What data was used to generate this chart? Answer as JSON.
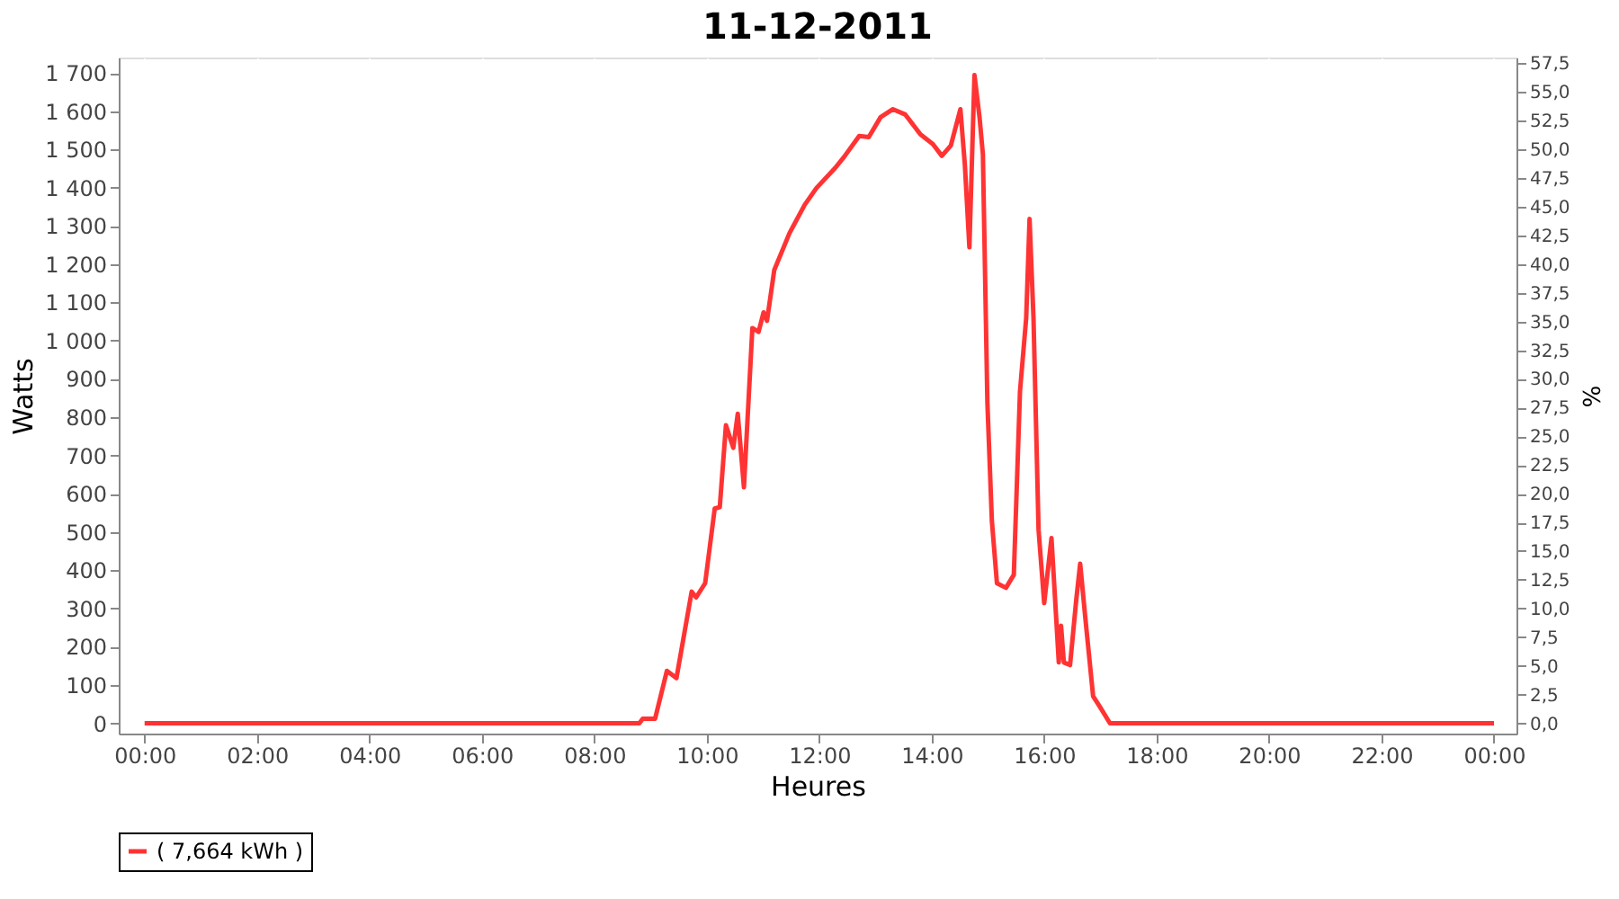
{
  "chart_data": {
    "type": "line",
    "title": "11-12-2011",
    "xlabel": "Heures",
    "ylabel": "Watts",
    "y2label": "%",
    "xlim": [
      -0.46,
      24.4
    ],
    "ylim": [
      -27,
      1740
    ],
    "y2lim": [
      -0.9,
      58.0
    ],
    "xticks": [
      {
        "value": 0,
        "label": "00:00"
      },
      {
        "value": 2,
        "label": "02:00"
      },
      {
        "value": 4,
        "label": "04:00"
      },
      {
        "value": 6,
        "label": "06:00"
      },
      {
        "value": 8,
        "label": "08:00"
      },
      {
        "value": 10,
        "label": "10:00"
      },
      {
        "value": 12,
        "label": "12:00"
      },
      {
        "value": 14,
        "label": "14:00"
      },
      {
        "value": 16,
        "label": "16:00"
      },
      {
        "value": 18,
        "label": "18:00"
      },
      {
        "value": 20,
        "label": "20:00"
      },
      {
        "value": 22,
        "label": "22:00"
      },
      {
        "value": 24,
        "label": "00:00"
      }
    ],
    "yticks": [
      0,
      100,
      200,
      300,
      400,
      500,
      600,
      700,
      800,
      900,
      {
        "value": 1000,
        "label": "1 000"
      },
      {
        "value": 1100,
        "label": "1 100"
      },
      {
        "value": 1200,
        "label": "1 200"
      },
      {
        "value": 1300,
        "label": "1 300"
      },
      {
        "value": 1400,
        "label": "1 400"
      },
      {
        "value": 1500,
        "label": "1 500"
      },
      {
        "value": 1600,
        "label": "1 600"
      },
      {
        "value": 1700,
        "label": "1 700"
      }
    ],
    "y2ticks": [
      {
        "value": 0,
        "label": "0,0"
      },
      {
        "value": 2.5,
        "label": "2,5"
      },
      {
        "value": 5,
        "label": "5,0"
      },
      {
        "value": 7.5,
        "label": "7,5"
      },
      {
        "value": 10,
        "label": "10,0"
      },
      {
        "value": 12.5,
        "label": "12,5"
      },
      {
        "value": 15,
        "label": "15,0"
      },
      {
        "value": 17.5,
        "label": "17,5"
      },
      {
        "value": 20,
        "label": "20,0"
      },
      {
        "value": 22.5,
        "label": "22,5"
      },
      {
        "value": 25,
        "label": "25,0"
      },
      {
        "value": 27.5,
        "label": "27,5"
      },
      {
        "value": 30,
        "label": "30,0"
      },
      {
        "value": 32.5,
        "label": "32,5"
      },
      {
        "value": 35,
        "label": "35,0"
      },
      {
        "value": 37.5,
        "label": "37,5"
      },
      {
        "value": 40,
        "label": "40,0"
      },
      {
        "value": 42.5,
        "label": "42,5"
      },
      {
        "value": 45,
        "label": "45,0"
      },
      {
        "value": 47.5,
        "label": "47,5"
      },
      {
        "value": 50,
        "label": "50,0"
      },
      {
        "value": 52.5,
        "label": "52,5"
      },
      {
        "value": 55,
        "label": "55,0"
      },
      {
        "value": 57.5,
        "label": "57,5"
      }
    ],
    "grid": true,
    "legend": "bottom",
    "marker": "none",
    "line_style": "solid",
    "series": [
      {
        "name": "( 7,664 kWh )",
        "color": "#ff3333",
        "x": [
          0,
          8.8,
          8.86,
          9.08,
          9.29,
          9.46,
          9.73,
          9.81,
          9.97,
          10.14,
          10.23,
          10.34,
          10.47,
          10.55,
          10.66,
          10.81,
          10.92,
          11.01,
          11.07,
          11.2,
          11.47,
          11.74,
          11.95,
          12.28,
          12.44,
          12.71,
          12.88,
          13.09,
          13.31,
          13.53,
          13.8,
          14.02,
          14.18,
          14.34,
          14.51,
          14.59,
          14.67,
          14.76,
          14.85,
          14.91,
          14.99,
          15.07,
          15.16,
          15.32,
          15.46,
          15.57,
          15.68,
          15.74,
          15.81,
          15.9,
          16.0,
          16.13,
          16.26,
          16.3,
          16.35,
          16.46,
          16.57,
          16.64,
          16.73,
          16.87,
          17.0,
          17.17,
          24
        ],
        "values": [
          0,
          0,
          12,
          12,
          137,
          118,
          344,
          329,
          366,
          561,
          565,
          779,
          720,
          809,
          617,
          1033,
          1023,
          1074,
          1052,
          1185,
          1281,
          1355,
          1399,
          1451,
          1480,
          1535,
          1532,
          1584,
          1605,
          1591,
          1539,
          1514,
          1483,
          1510,
          1605,
          1458,
          1244,
          1694,
          1584,
          1487,
          838,
          528,
          366,
          354,
          388,
          868,
          1059,
          1318,
          1059,
          506,
          314,
          484,
          159,
          255,
          159,
          152,
          322,
          417,
          278,
          71,
          41,
          0,
          0
        ]
      }
    ]
  }
}
